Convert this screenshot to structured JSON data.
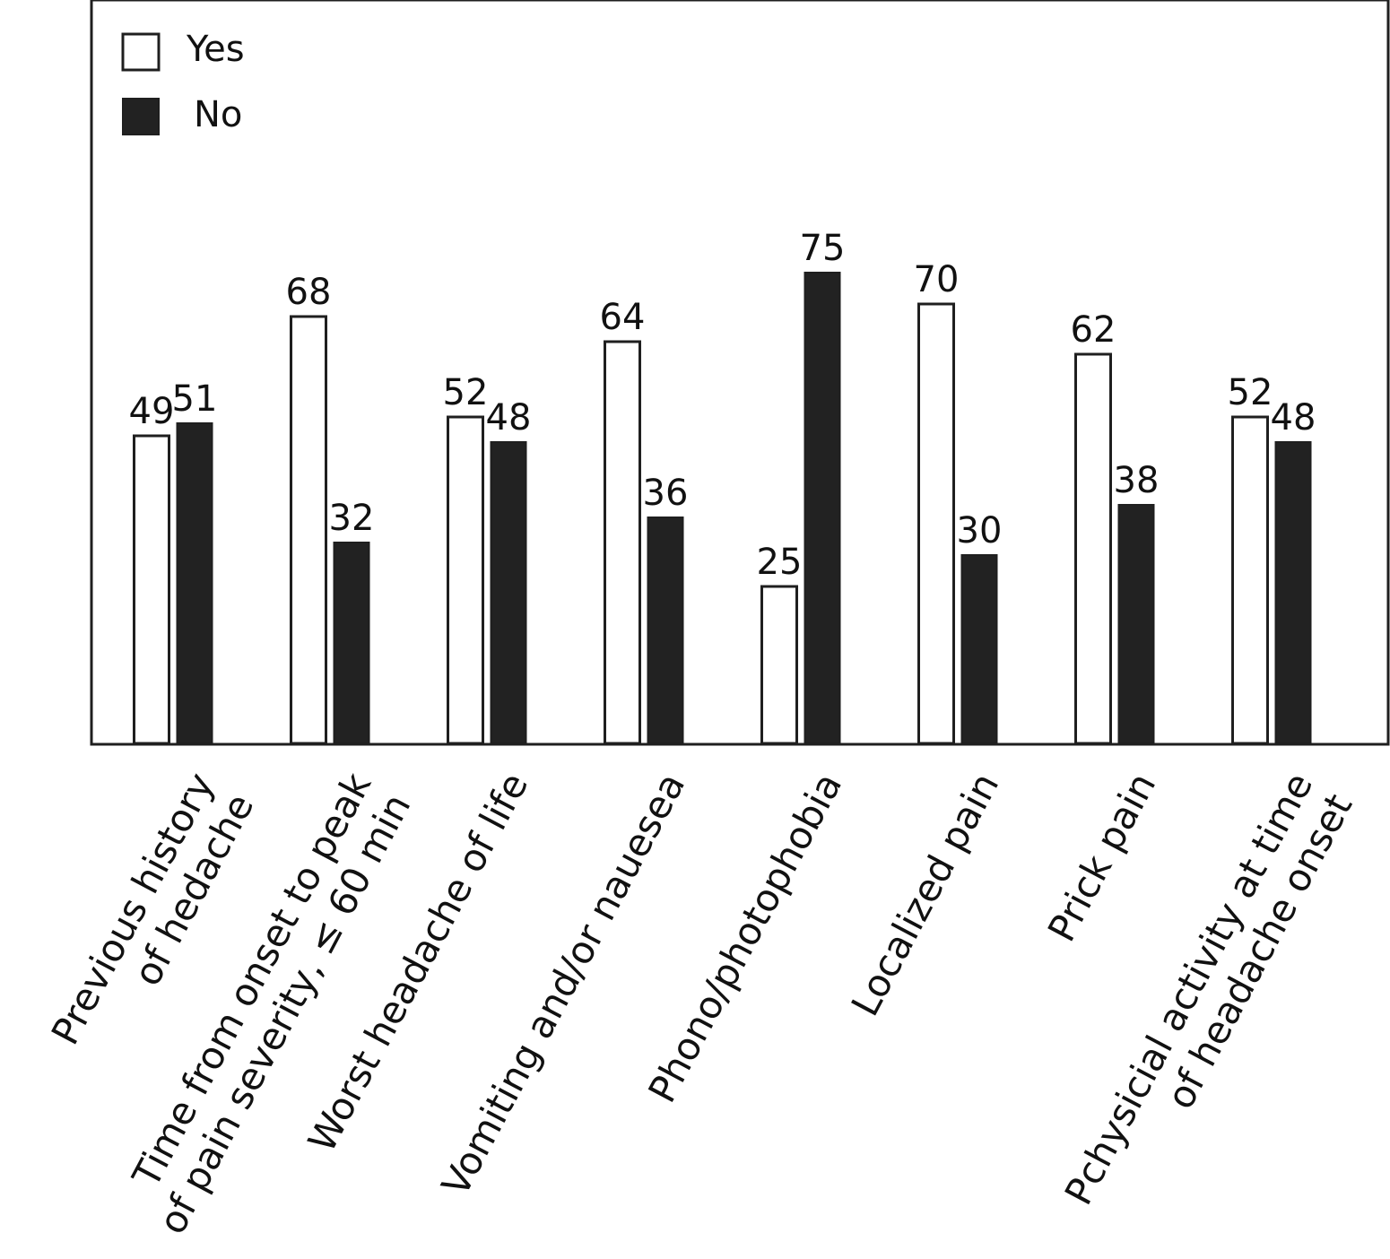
{
  "chart_data": {
    "type": "bar",
    "categories": [
      [
        "Previous history",
        "of hedache"
      ],
      [
        "Time from onset to peak",
        "of pain severity, ≤ 60 min"
      ],
      [
        "Worst headache of life"
      ],
      [
        "Vomiting and/or nauesea"
      ],
      [
        "Phono/photophobia"
      ],
      [
        "Localized pain"
      ],
      [
        "Prick pain"
      ],
      [
        "Pchysicial activity at time",
        "of headache onset"
      ]
    ],
    "series": [
      {
        "name": "Yes",
        "color": "#ffffff",
        "values": [
          49,
          68,
          52,
          64,
          25,
          70,
          62,
          52
        ]
      },
      {
        "name": "No",
        "color": "#222222",
        "values": [
          51,
          32,
          48,
          36,
          75,
          30,
          38,
          48
        ]
      }
    ],
    "title": "",
    "xlabel": "",
    "ylabel": "",
    "ylim": [
      0,
      80
    ],
    "grid": false,
    "legend": "top-left",
    "data_labels": true
  }
}
